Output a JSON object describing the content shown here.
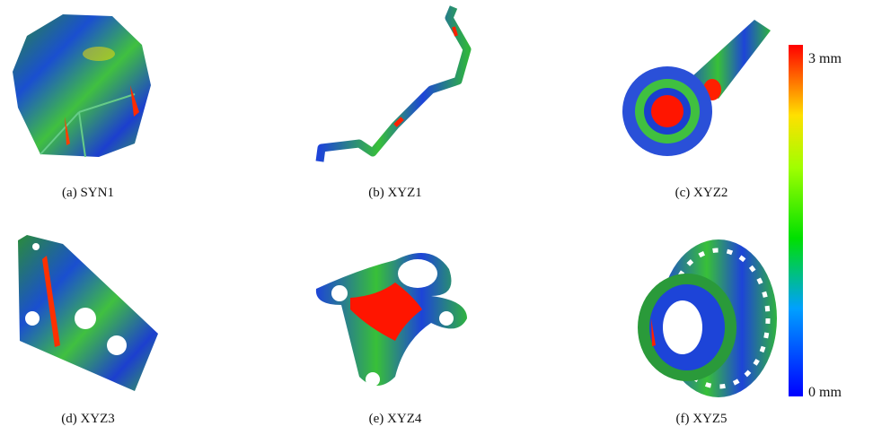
{
  "panels": [
    {
      "caption": "(a) SYN1"
    },
    {
      "caption": "(b) XYZ1"
    },
    {
      "caption": "(c) XYZ2"
    },
    {
      "caption": "(d) XYZ3"
    },
    {
      "caption": "(e) XYZ4"
    },
    {
      "caption": "(f) XYZ5"
    }
  ],
  "colorbar": {
    "max_label": "3 mm",
    "min_label": "0 mm"
  }
}
